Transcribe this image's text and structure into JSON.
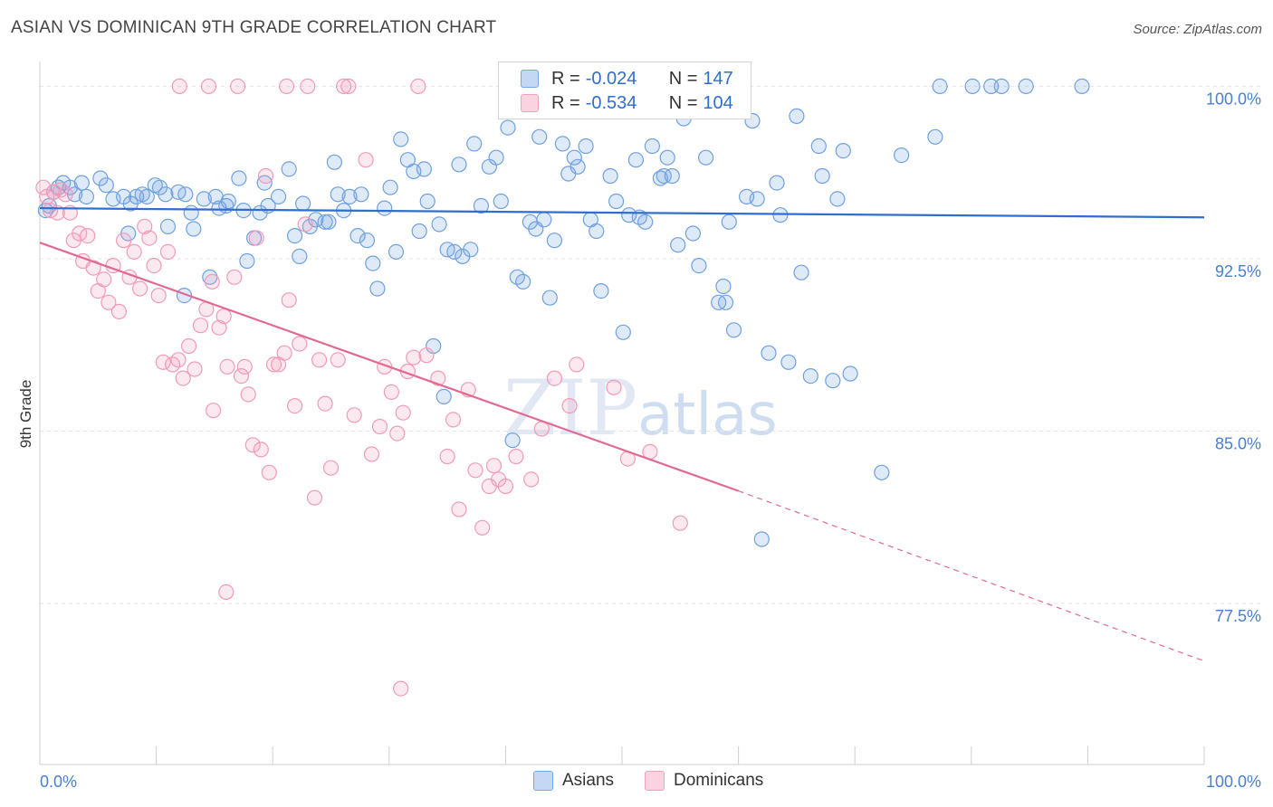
{
  "title": "ASIAN VS DOMINICAN 9TH GRADE CORRELATION CHART",
  "source": "Source: ZipAtlas.com",
  "colors": {
    "asian": "#6fa0e0",
    "dominican": "#f19ab8",
    "asian_line": "#2f6ecf",
    "dominican_line": "#e06a94",
    "tick": "#4a7fd0"
  },
  "legend": {
    "r_label": "R =",
    "n_label": "N =",
    "asian": {
      "r": "-0.024",
      "n": "147"
    },
    "dominican": {
      "r": "-0.534",
      "n": "104"
    }
  },
  "bottom_legend": {
    "asian": "Asians",
    "dominican": "Dominicans"
  },
  "watermark": {
    "zip": "ZIP",
    "atlas": "atlas"
  },
  "chart_data": {
    "type": "scatter",
    "title": "ASIAN VS DOMINICAN 9TH GRADE CORRELATION CHART",
    "ylabel": "9th Grade",
    "xlabel": "",
    "xlim": [
      0,
      100
    ],
    "ylim": [
      70.5,
      101
    ],
    "x_tick_labels": [
      "0.0%",
      "100.0%"
    ],
    "y_ticks": [
      100.0,
      92.5,
      85.0,
      77.5
    ],
    "y_tick_labels": [
      "100.0%",
      "92.5%",
      "85.0%",
      "77.5%"
    ],
    "grid": true,
    "series": [
      {
        "name": "Asians",
        "trend": {
          "x": [
            0,
            100
          ],
          "y": [
            94.7,
            94.3
          ]
        },
        "points": [
          [
            0.5,
            94.6
          ],
          [
            0.8,
            94.8
          ],
          [
            1.2,
            95.4
          ],
          [
            1.6,
            95.6
          ],
          [
            2.0,
            95.8
          ],
          [
            2.6,
            95.6
          ],
          [
            3.0,
            95.3
          ],
          [
            3.6,
            95.8
          ],
          [
            4.0,
            95.2
          ],
          [
            5.2,
            96.0
          ],
          [
            5.7,
            95.7
          ],
          [
            6.3,
            95.1
          ],
          [
            7.2,
            95.2
          ],
          [
            7.6,
            93.6
          ],
          [
            7.8,
            94.9
          ],
          [
            8.3,
            95.2
          ],
          [
            8.8,
            95.3
          ],
          [
            9.2,
            95.2
          ],
          [
            9.9,
            95.7
          ],
          [
            10.3,
            95.6
          ],
          [
            10.8,
            95.3
          ],
          [
            11.0,
            93.9
          ],
          [
            11.9,
            95.4
          ],
          [
            12.4,
            90.9
          ],
          [
            12.5,
            95.3
          ],
          [
            13.0,
            94.5
          ],
          [
            13.2,
            93.8
          ],
          [
            14.1,
            95.1
          ],
          [
            14.6,
            91.7
          ],
          [
            15.1,
            95.2
          ],
          [
            15.4,
            94.7
          ],
          [
            16.0,
            94.8
          ],
          [
            16.2,
            95.0
          ],
          [
            17.1,
            96.0
          ],
          [
            17.5,
            94.6
          ],
          [
            17.8,
            92.4
          ],
          [
            18.4,
            93.4
          ],
          [
            18.9,
            94.5
          ],
          [
            19.3,
            95.8
          ],
          [
            19.6,
            94.8
          ],
          [
            20.5,
            95.2
          ],
          [
            21.4,
            96.4
          ],
          [
            21.9,
            93.5
          ],
          [
            22.3,
            92.6
          ],
          [
            22.6,
            94.9
          ],
          [
            23.2,
            93.9
          ],
          [
            23.7,
            94.2
          ],
          [
            24.5,
            94.1
          ],
          [
            24.8,
            94.1
          ],
          [
            25.3,
            96.7
          ],
          [
            25.6,
            95.3
          ],
          [
            26.1,
            94.6
          ],
          [
            26.6,
            95.2
          ],
          [
            27.3,
            93.5
          ],
          [
            27.6,
            95.3
          ],
          [
            28.1,
            93.3
          ],
          [
            28.6,
            92.3
          ],
          [
            29.0,
            91.2
          ],
          [
            29.6,
            94.7
          ],
          [
            30.1,
            95.6
          ],
          [
            30.6,
            92.8
          ],
          [
            31.0,
            97.7
          ],
          [
            31.6,
            96.8
          ],
          [
            32.1,
            96.3
          ],
          [
            32.6,
            93.7
          ],
          [
            33.0,
            96.4
          ],
          [
            33.3,
            95.0
          ],
          [
            33.8,
            88.7
          ],
          [
            34.3,
            94.0
          ],
          [
            34.7,
            86.5
          ],
          [
            35.0,
            92.9
          ],
          [
            35.6,
            92.8
          ],
          [
            36.0,
            96.6
          ],
          [
            36.3,
            92.6
          ],
          [
            37.0,
            92.9
          ],
          [
            37.3,
            97.5
          ],
          [
            37.9,
            94.8
          ],
          [
            38.6,
            96.5
          ],
          [
            39.2,
            96.9
          ],
          [
            39.6,
            95.0
          ],
          [
            40.2,
            98.2
          ],
          [
            40.6,
            84.6
          ],
          [
            41.0,
            91.7
          ],
          [
            41.5,
            91.5
          ],
          [
            42.1,
            94.1
          ],
          [
            42.6,
            93.8
          ],
          [
            42.9,
            97.8
          ],
          [
            43.3,
            94.2
          ],
          [
            43.8,
            90.8
          ],
          [
            44.2,
            93.3
          ],
          [
            44.9,
            97.5
          ],
          [
            45.4,
            96.2
          ],
          [
            45.9,
            96.9
          ],
          [
            46.2,
            96.5
          ],
          [
            46.9,
            97.4
          ],
          [
            47.3,
            94.2
          ],
          [
            47.8,
            93.7
          ],
          [
            48.2,
            91.1
          ],
          [
            49.0,
            96.1
          ],
          [
            49.5,
            95.0
          ],
          [
            50.1,
            89.3
          ],
          [
            50.6,
            94.4
          ],
          [
            51.2,
            96.8
          ],
          [
            51.5,
            94.3
          ],
          [
            52.0,
            94.1
          ],
          [
            52.6,
            97.4
          ],
          [
            53.3,
            96.0
          ],
          [
            53.6,
            96.1
          ],
          [
            53.9,
            96.9
          ],
          [
            54.3,
            96.1
          ],
          [
            54.8,
            93.1
          ],
          [
            55.3,
            98.6
          ],
          [
            56.1,
            93.6
          ],
          [
            56.6,
            92.2
          ],
          [
            57.2,
            96.9
          ],
          [
            58.3,
            90.6
          ],
          [
            58.9,
            90.6
          ],
          [
            59.2,
            94.1
          ],
          [
            59.6,
            89.4
          ],
          [
            58.7,
            91.3
          ],
          [
            60.7,
            95.2
          ],
          [
            61.2,
            98.5
          ],
          [
            61.6,
            95.1
          ],
          [
            62.0,
            80.3
          ],
          [
            62.6,
            88.4
          ],
          [
            63.3,
            95.8
          ],
          [
            63.6,
            94.4
          ],
          [
            64.3,
            88.0
          ],
          [
            65.0,
            98.7
          ],
          [
            65.4,
            91.9
          ],
          [
            66.2,
            87.4
          ],
          [
            66.9,
            97.4
          ],
          [
            67.2,
            96.1
          ],
          [
            68.1,
            87.2
          ],
          [
            68.5,
            95.1
          ],
          [
            69.0,
            97.2
          ],
          [
            69.6,
            87.5
          ],
          [
            72.3,
            83.2
          ],
          [
            74.0,
            97.0
          ],
          [
            76.9,
            97.8
          ],
          [
            77.3,
            100.0
          ],
          [
            80.1,
            100.0
          ],
          [
            81.7,
            100.0
          ],
          [
            82.6,
            100.0
          ],
          [
            84.7,
            100.0
          ],
          [
            89.5,
            100.0
          ]
        ]
      },
      {
        "name": "Dominicans",
        "trend": {
          "x": [
            0,
            60
          ],
          "y": [
            93.2,
            82.4
          ]
        },
        "trend_dashed": {
          "x": [
            60,
            100
          ],
          "y": [
            82.4,
            75.0
          ]
        },
        "points": [
          [
            0.3,
            95.6
          ],
          [
            0.6,
            95.2
          ],
          [
            0.9,
            94.6
          ],
          [
            1.2,
            95.4
          ],
          [
            1.5,
            94.5
          ],
          [
            1.8,
            95.5
          ],
          [
            2.2,
            95.3
          ],
          [
            2.6,
            94.5
          ],
          [
            2.9,
            93.3
          ],
          [
            3.4,
            93.6
          ],
          [
            3.7,
            92.4
          ],
          [
            4.1,
            93.5
          ],
          [
            4.6,
            92.1
          ],
          [
            5.0,
            91.1
          ],
          [
            5.5,
            91.6
          ],
          [
            5.9,
            90.6
          ],
          [
            6.3,
            92.2
          ],
          [
            6.8,
            90.2
          ],
          [
            7.2,
            93.3
          ],
          [
            7.7,
            91.7
          ],
          [
            8.1,
            92.8
          ],
          [
            8.6,
            91.2
          ],
          [
            9.0,
            93.9
          ],
          [
            9.4,
            93.4
          ],
          [
            9.8,
            92.2
          ],
          [
            10.2,
            90.9
          ],
          [
            10.6,
            88.0
          ],
          [
            11.0,
            92.8
          ],
          [
            11.4,
            87.9
          ],
          [
            11.9,
            88.1
          ],
          [
            12.3,
            87.3
          ],
          [
            12.8,
            88.7
          ],
          [
            13.3,
            87.7
          ],
          [
            13.8,
            89.6
          ],
          [
            14.3,
            90.3
          ],
          [
            14.8,
            91.5
          ],
          [
            14.9,
            85.9
          ],
          [
            15.4,
            89.5
          ],
          [
            15.8,
            90.0
          ],
          [
            16.1,
            87.8
          ],
          [
            16.7,
            91.7
          ],
          [
            17.3,
            87.4
          ],
          [
            17.6,
            87.8
          ],
          [
            17.9,
            86.6
          ],
          [
            18.3,
            84.4
          ],
          [
            18.6,
            93.4
          ],
          [
            19.0,
            84.2
          ],
          [
            19.4,
            96.1
          ],
          [
            19.7,
            83.2
          ],
          [
            20.1,
            87.9
          ],
          [
            20.5,
            87.9
          ],
          [
            21.0,
            88.4
          ],
          [
            21.4,
            90.7
          ],
          [
            21.9,
            86.1
          ],
          [
            22.3,
            88.8
          ],
          [
            22.8,
            94.0
          ],
          [
            23.0,
            100.0
          ],
          [
            23.6,
            82.1
          ],
          [
            24.0,
            88.1
          ],
          [
            24.5,
            86.2
          ],
          [
            25.0,
            83.4
          ],
          [
            25.6,
            88.1
          ],
          [
            26.1,
            100.0
          ],
          [
            27.0,
            85.7
          ],
          [
            28.0,
            96.8
          ],
          [
            28.5,
            84.0
          ],
          [
            29.2,
            85.2
          ],
          [
            29.6,
            87.8
          ],
          [
            30.2,
            86.7
          ],
          [
            30.7,
            84.9
          ],
          [
            31.2,
            85.8
          ],
          [
            31.6,
            87.6
          ],
          [
            32.1,
            88.2
          ],
          [
            32.5,
            100.0
          ],
          [
            33.2,
            88.3
          ],
          [
            34.2,
            87.3
          ],
          [
            35.0,
            83.9
          ],
          [
            35.5,
            85.5
          ],
          [
            36.0,
            81.6
          ],
          [
            36.8,
            86.8
          ],
          [
            37.4,
            83.3
          ],
          [
            38.0,
            80.8
          ],
          [
            38.6,
            82.6
          ],
          [
            39.0,
            83.5
          ],
          [
            39.4,
            82.9
          ],
          [
            40.0,
            82.6
          ],
          [
            40.9,
            83.9
          ],
          [
            42.2,
            82.9
          ],
          [
            43.1,
            85.1
          ],
          [
            44.2,
            87.3
          ],
          [
            45.5,
            86.1
          ],
          [
            46.1,
            87.9
          ],
          [
            49.3,
            86.9
          ],
          [
            50.5,
            83.8
          ],
          [
            52.4,
            84.1
          ],
          [
            55.0,
            81.0
          ],
          [
            12.0,
            100.0
          ],
          [
            14.5,
            100.0
          ],
          [
            17.0,
            100.0
          ],
          [
            16.0,
            78.0
          ],
          [
            31.0,
            73.8
          ],
          [
            21.2,
            100.0
          ],
          [
            26.5,
            100.0
          ]
        ]
      }
    ]
  }
}
